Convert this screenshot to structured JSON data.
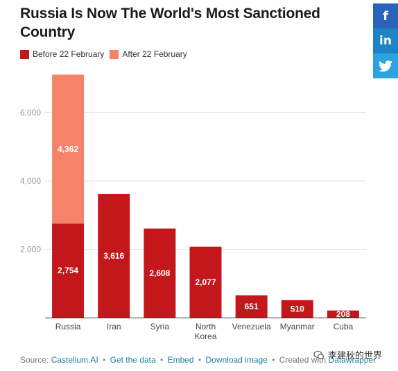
{
  "title": "Russia Is Now The World's Most Sanctioned Country",
  "legend": [
    {
      "label": "Before 22 February",
      "color": "#c4171c"
    },
    {
      "label": "After 22 February",
      "color": "#f5836a"
    }
  ],
  "chart_data": {
    "type": "bar",
    "stacked": true,
    "title": "Russia Is Now The World's Most Sanctioned Country",
    "categories": [
      "Russia",
      "Iran",
      "Syria",
      "North Korea",
      "Venezuela",
      "Myanmar",
      "Cuba"
    ],
    "category_labels": [
      [
        "Russia"
      ],
      [
        "Iran"
      ],
      [
        "Syria"
      ],
      [
        "North",
        "Korea"
      ],
      [
        "Venezuela"
      ],
      [
        "Myanmar"
      ],
      [
        "Cuba"
      ]
    ],
    "series": [
      {
        "name": "Before 22 February",
        "color": "#c4171c",
        "values": [
          2754,
          3616,
          2608,
          2077,
          651,
          510,
          208
        ]
      },
      {
        "name": "After 22 February",
        "color": "#f5836a",
        "values": [
          4362,
          0,
          0,
          0,
          0,
          0,
          0
        ]
      }
    ],
    "data_labels": [
      {
        "series": 0,
        "labels": [
          "2,754",
          "3,616",
          "2,608",
          "2,077",
          "651",
          "510",
          "208"
        ]
      },
      {
        "series": 1,
        "labels": [
          "4,362",
          "",
          "",
          "",
          "",
          "",
          ""
        ]
      }
    ],
    "yticks": [
      {
        "value": 2000,
        "label": "2,000"
      },
      {
        "value": 4000,
        "label": "4,000"
      },
      {
        "value": 6000,
        "label": "6,000"
      }
    ],
    "ylim": [
      0,
      7300
    ],
    "grid": true,
    "legend_position": "top-left"
  },
  "social": {
    "facebook": "f",
    "linkedin": "in",
    "twitter": "twitter-icon"
  },
  "footer": {
    "source_prefix": "Source:",
    "source_link": "Castellum.AI",
    "get_data": "Get the data",
    "embed": "Embed",
    "download": "Download image",
    "created_prefix": "Created with",
    "created_link": "Datawrapper",
    "separator": "•"
  },
  "watermark": "李建秋的世界"
}
